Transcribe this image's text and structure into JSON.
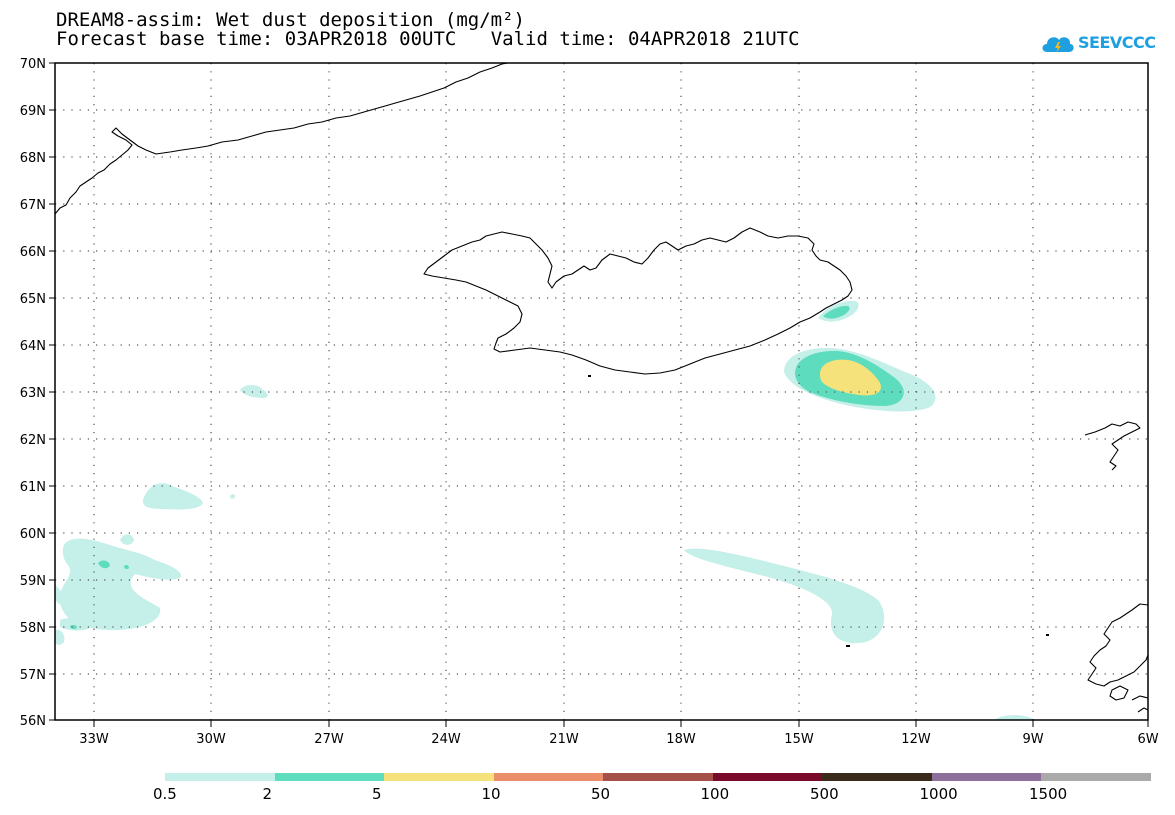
{
  "header": {
    "title_line1": "DREAM8-assim: Wet dust deposition (mg/m²)",
    "base_time_label": "Forecast base time: 03APR2018 00UTC",
    "valid_time_label": "Valid time: 04APR2018 21UTC"
  },
  "logo": {
    "text": "SEEVCCC",
    "icon": "cloud-logo-icon"
  },
  "colors": {
    "c1": "#c5efe9",
    "c2": "#5dddbd",
    "c3": "#f5e27a",
    "c4": "#ea8f6a",
    "c5": "#a5514a",
    "c6": "#7a0a2a",
    "c7": "#3a2a1a",
    "c8": "#8e6e9a",
    "c9": "#aaaaaa"
  },
  "map": {
    "lat_labels": [
      "70N",
      "69N",
      "68N",
      "67N",
      "66N",
      "65N",
      "64N",
      "63N",
      "62N",
      "61N",
      "60N",
      "59N",
      "58N",
      "57N",
      "56N"
    ],
    "lon_labels": [
      "33W",
      "30W",
      "27W",
      "24W",
      "21W",
      "18W",
      "15W",
      "12W",
      "9W",
      "6W"
    ]
  },
  "legend": {
    "labels": [
      "0.5",
      "2",
      "5",
      "10",
      "50",
      "100",
      "500",
      "1000",
      "1500"
    ],
    "colors": [
      "#c5efe9",
      "#5dddbd",
      "#f5e27a",
      "#ea8f6a",
      "#a5514a",
      "#7a0a2a",
      "#3a2a1a",
      "#8e6e9a",
      "#aaaaaa"
    ]
  }
}
